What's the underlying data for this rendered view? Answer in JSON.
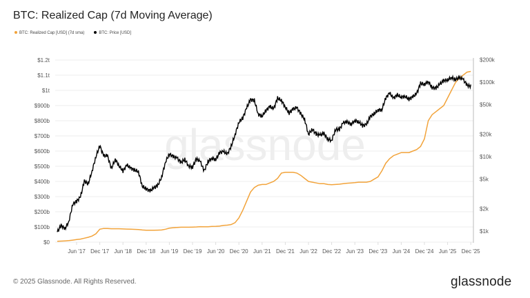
{
  "header": {
    "title": "BTC: Realized Cap (7d Moving Average)"
  },
  "footer": {
    "copyright": "© 2025 Glassnode. All Rights Reserved.",
    "logo": "glassnode"
  },
  "watermark": "glassnode",
  "chart_data": {
    "type": "line",
    "title": "BTC: Realized Cap (7d Moving Average)",
    "legend_position": "top-left",
    "grid": true,
    "x_start": "2017-01",
    "x_step": "month",
    "x_tick_labels": [
      "Jun '17",
      "Dec '17",
      "Jun '18",
      "Dec '18",
      "Jun '19",
      "Dec '19",
      "Jun '20",
      "Dec '20",
      "Jun '21",
      "Dec '21",
      "Jun '22",
      "Dec '22",
      "Jun '23",
      "Dec '23",
      "Jun '24",
      "Dec '24",
      "Jun '25",
      "Dec '25"
    ],
    "y_left": {
      "scale": "linear",
      "range_billions": [
        0,
        1200
      ],
      "tick_labels": [
        "$0",
        "$100b",
        "$200b",
        "$300b",
        "$400b",
        "$500b",
        "$600b",
        "$700b",
        "$800b",
        "$900b",
        "$1t",
        "$1.1t",
        "$1.2t"
      ]
    },
    "y_right": {
      "scale": "log",
      "tick_values": [
        1000,
        2000,
        5000,
        10000,
        20000,
        50000,
        100000,
        200000
      ],
      "tick_labels": [
        "$1k",
        "$2k",
        "$5k",
        "$10k",
        "$20k",
        "$50k",
        "$100k",
        "$200k"
      ]
    },
    "series": [
      {
        "name": "BTC: Realized Cap [USD] (7d sma)",
        "axis": "left",
        "unit": "billion USD",
        "color": "#f2a33a",
        "values": [
          6,
          7,
          8,
          10,
          13,
          17,
          20,
          26,
          32,
          40,
          55,
          85,
          90,
          90,
          88,
          88,
          88,
          87,
          86,
          85,
          84,
          83,
          80,
          78,
          78,
          78,
          79,
          80,
          85,
          92,
          95,
          97,
          98,
          98,
          98,
          99,
          100,
          102,
          101,
          101,
          103,
          104,
          106,
          110,
          112,
          116,
          128,
          160,
          210,
          270,
          330,
          360,
          375,
          380,
          380,
          390,
          400,
          420,
          455,
          460,
          460,
          460,
          455,
          440,
          420,
          400,
          395,
          390,
          385,
          385,
          380,
          378,
          380,
          382,
          385,
          388,
          390,
          392,
          395,
          395,
          395,
          400,
          415,
          430,
          470,
          520,
          550,
          570,
          580,
          590,
          590,
          590,
          600,
          610,
          630,
          680,
          800,
          840,
          860,
          880,
          900,
          950,
          1000,
          1050,
          1080,
          1100,
          1120,
          1125
        ]
      },
      {
        "name": "BTC: Price [USD]",
        "axis": "right",
        "unit": "USD",
        "color": "#000000",
        "values": [
          970,
          1190,
          1080,
          1350,
          2300,
          2500,
          2870,
          4700,
          4300,
          6400,
          10000,
          14000,
          10200,
          10300,
          6900,
          9200,
          7500,
          6400,
          7700,
          7000,
          6600,
          6300,
          4000,
          3700,
          3450,
          3800,
          4100,
          5300,
          8500,
          10800,
          10000,
          9600,
          8300,
          9200,
          7500,
          7200,
          9300,
          8600,
          6400,
          8600,
          9500,
          9100,
          11300,
          11700,
          10800,
          13800,
          19700,
          29000,
          33000,
          45000,
          58000,
          57000,
          37000,
          35000,
          41500,
          47000,
          43800,
          61000,
          57000,
          46300,
          38500,
          43200,
          45500,
          37700,
          31800,
          19900,
          23300,
          20000,
          19400,
          20500,
          17200,
          16500,
          23100,
          23100,
          28500,
          29200,
          27200,
          30500,
          29200,
          26000,
          27000,
          34500,
          37700,
          42300,
          42600,
          61200,
          71300,
          60600,
          67500,
          62700,
          64600,
          59000,
          63300,
          70200,
          96400,
          93400,
          102000,
          84300,
          82500,
          94200,
          104600,
          107100,
          115700,
          108200,
          114000,
          109500,
          91000,
          88000
        ]
      }
    ]
  }
}
